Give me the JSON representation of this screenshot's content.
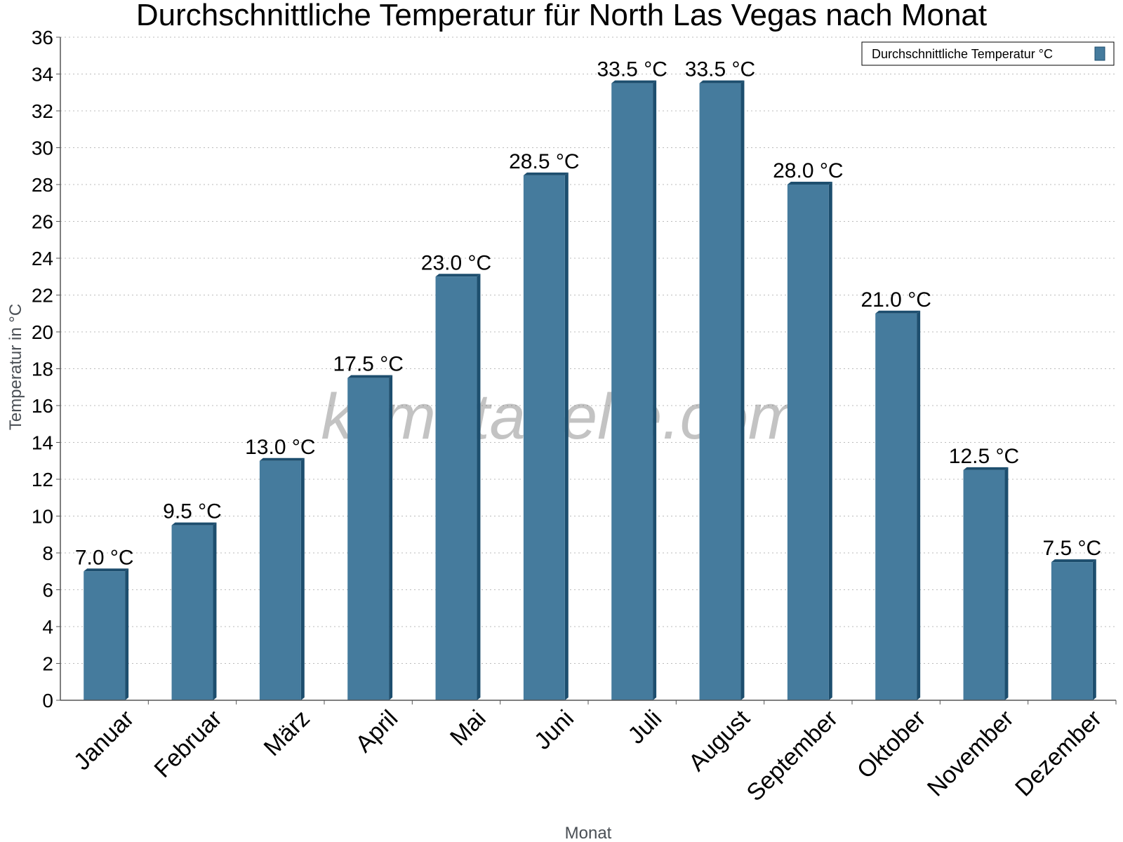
{
  "chart_data": {
    "type": "bar",
    "title": "Durchschnittliche Temperatur für North Las Vegas nach Monat",
    "xlabel": "Monat",
    "ylabel": "Temperatur in °C",
    "ylim": [
      0,
      36
    ],
    "ytick_step": 2,
    "grid": true,
    "legend_position": "top-right",
    "categories": [
      "Januar",
      "Februar",
      "März",
      "April",
      "Mai",
      "Juni",
      "Juli",
      "August",
      "September",
      "Oktober",
      "November",
      "Dezember"
    ],
    "series": [
      {
        "name": "Durchschnittliche Temperatur °C",
        "values": [
          7.0,
          9.5,
          13.0,
          17.5,
          23.0,
          28.5,
          33.5,
          33.5,
          28.0,
          21.0,
          12.5,
          7.5
        ],
        "labels": [
          "7.0 °C",
          "9.5 °C",
          "13.0 °C",
          "17.5 °C",
          "23.0 °C",
          "28.5 °C",
          "33.5 °C",
          "33.5 °C",
          "28.0 °C",
          "21.0 °C",
          "12.5 °C",
          "7.5 °C"
        ],
        "color": "#457b9d",
        "edge_color": "#1d4e6e"
      }
    ],
    "watermark": "klimatabelle.com"
  }
}
